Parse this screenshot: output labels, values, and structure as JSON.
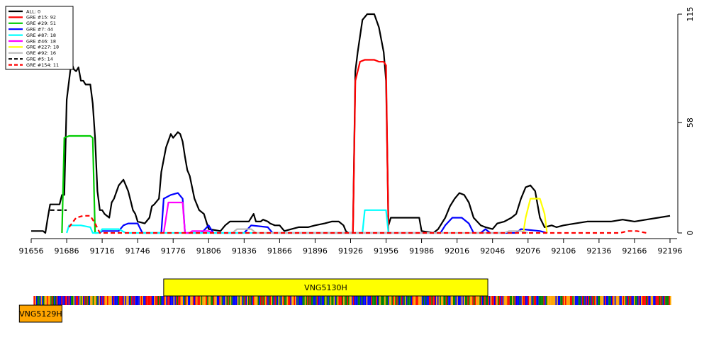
{
  "chart_data": {
    "type": "line",
    "title": "",
    "xlabel": "",
    "ylabel": "",
    "xlim": [
      91656,
      92202
    ],
    "ylim": [
      0,
      115
    ],
    "x_ticks": [
      91656,
      91686,
      91716,
      91746,
      91776,
      91806,
      91836,
      91866,
      91896,
      91926,
      91956,
      91986,
      92016,
      92046,
      92076,
      92106,
      92136,
      92166,
      92196
    ],
    "y_ticks": [
      0,
      58,
      115
    ],
    "y_axis_side": "right",
    "grid": false,
    "legend_position": "top-left",
    "series": [
      {
        "name": "ALL: 0",
        "color": "#000000",
        "dash": "solid",
        "points": [
          [
            91656,
            1
          ],
          [
            91666,
            1
          ],
          [
            91668,
            0
          ],
          [
            91670,
            8
          ],
          [
            91672,
            15
          ],
          [
            91680,
            15
          ],
          [
            91682,
            20
          ],
          [
            91684,
            20
          ],
          [
            91686,
            70
          ],
          [
            91688,
            80
          ],
          [
            91690,
            90
          ],
          [
            91692,
            86
          ],
          [
            91694,
            85
          ],
          [
            91696,
            87
          ],
          [
            91698,
            80
          ],
          [
            91700,
            80
          ],
          [
            91702,
            78
          ],
          [
            91706,
            78
          ],
          [
            91708,
            68
          ],
          [
            91710,
            50
          ],
          [
            91712,
            22
          ],
          [
            91714,
            12
          ],
          [
            91716,
            12
          ],
          [
            91718,
            10
          ],
          [
            91722,
            8
          ],
          [
            91724,
            16
          ],
          [
            91726,
            18
          ],
          [
            91730,
            25
          ],
          [
            91734,
            28
          ],
          [
            91736,
            25
          ],
          [
            91738,
            22
          ],
          [
            91740,
            17
          ],
          [
            91742,
            12
          ],
          [
            91744,
            10
          ],
          [
            91746,
            6
          ],
          [
            91752,
            5
          ],
          [
            91756,
            8
          ],
          [
            91758,
            14
          ],
          [
            91760,
            15
          ],
          [
            91764,
            18
          ],
          [
            91766,
            32
          ],
          [
            91770,
            45
          ],
          [
            91774,
            52
          ],
          [
            91776,
            50
          ],
          [
            91780,
            53
          ],
          [
            91782,
            52
          ],
          [
            91784,
            48
          ],
          [
            91786,
            40
          ],
          [
            91788,
            33
          ],
          [
            91790,
            30
          ],
          [
            91794,
            18
          ],
          [
            91798,
            12
          ],
          [
            91802,
            10
          ],
          [
            91806,
            2
          ],
          [
            91816,
            1
          ],
          [
            91820,
            4
          ],
          [
            91824,
            6
          ],
          [
            91828,
            6
          ],
          [
            91834,
            6
          ],
          [
            91840,
            6
          ],
          [
            91844,
            10
          ],
          [
            91846,
            6
          ],
          [
            91850,
            6
          ],
          [
            91852,
            7
          ],
          [
            91856,
            6
          ],
          [
            91858,
            5
          ],
          [
            91862,
            4
          ],
          [
            91866,
            4
          ],
          [
            91870,
            1
          ],
          [
            91876,
            2
          ],
          [
            91882,
            3
          ],
          [
            91890,
            3
          ],
          [
            91896,
            4
          ],
          [
            91904,
            5
          ],
          [
            91910,
            6
          ],
          [
            91916,
            6
          ],
          [
            91920,
            4
          ],
          [
            91922,
            1
          ],
          [
            91924,
            0
          ],
          [
            91928,
            0
          ],
          [
            91930,
            85
          ],
          [
            91932,
            95
          ],
          [
            91936,
            112
          ],
          [
            91940,
            115
          ],
          [
            91946,
            115
          ],
          [
            91950,
            108
          ],
          [
            91954,
            95
          ],
          [
            91956,
            80
          ],
          [
            91958,
            4
          ],
          [
            91960,
            8
          ],
          [
            91970,
            8
          ],
          [
            91980,
            8
          ],
          [
            91984,
            8
          ],
          [
            91986,
            1
          ],
          [
            91996,
            0
          ],
          [
            92000,
            2
          ],
          [
            92006,
            8
          ],
          [
            92010,
            14
          ],
          [
            92014,
            18
          ],
          [
            92018,
            21
          ],
          [
            92022,
            20
          ],
          [
            92026,
            16
          ],
          [
            92030,
            8
          ],
          [
            92036,
            4
          ],
          [
            92040,
            3
          ],
          [
            92046,
            2
          ],
          [
            92050,
            5
          ],
          [
            92056,
            6
          ],
          [
            92062,
            8
          ],
          [
            92066,
            10
          ],
          [
            92070,
            18
          ],
          [
            92074,
            24
          ],
          [
            92078,
            25
          ],
          [
            92082,
            22
          ],
          [
            92086,
            8
          ],
          [
            92090,
            3
          ],
          [
            92096,
            4
          ],
          [
            92100,
            3
          ],
          [
            92106,
            4
          ],
          [
            92116,
            5
          ],
          [
            92126,
            6
          ],
          [
            92136,
            6
          ],
          [
            92146,
            6
          ],
          [
            92156,
            7
          ],
          [
            92166,
            6
          ],
          [
            92176,
            7
          ],
          [
            92186,
            8
          ],
          [
            92196,
            9
          ]
        ]
      },
      {
        "name": "GRE #15: 92",
        "color": "#ff0000",
        "dash": "solid",
        "points": [
          [
            91926,
            0
          ],
          [
            91928,
            0
          ],
          [
            91930,
            80
          ],
          [
            91934,
            90
          ],
          [
            91938,
            91
          ],
          [
            91946,
            91
          ],
          [
            91950,
            90
          ],
          [
            91954,
            90
          ],
          [
            91956,
            88
          ],
          [
            91958,
            0
          ],
          [
            91960,
            0
          ]
        ]
      },
      {
        "name": "GRE #29: 51",
        "color": "#00cc00",
        "dash": "solid",
        "points": [
          [
            91682,
            0
          ],
          [
            91684,
            50
          ],
          [
            91688,
            51
          ],
          [
            91700,
            51
          ],
          [
            91706,
            51
          ],
          [
            91708,
            50
          ],
          [
            91710,
            0
          ],
          [
            91712,
            0
          ]
        ]
      },
      {
        "name": "GRE #7: 44",
        "color": "#0000ff",
        "dash": "solid",
        "points": [
          [
            91714,
            0
          ],
          [
            91716,
            1
          ],
          [
            91730,
            1
          ],
          [
            91734,
            4
          ],
          [
            91738,
            5
          ],
          [
            91746,
            5
          ],
          [
            91750,
            0
          ],
          [
            91766,
            0
          ],
          [
            91768,
            18
          ],
          [
            91774,
            20
          ],
          [
            91780,
            21
          ],
          [
            91784,
            18
          ],
          [
            91786,
            0
          ],
          [
            91800,
            0
          ],
          [
            91806,
            4
          ],
          [
            91810,
            0
          ],
          [
            91836,
            0
          ],
          [
            91842,
            4
          ],
          [
            91856,
            3
          ],
          [
            91860,
            0
          ],
          [
            92002,
            0
          ],
          [
            92006,
            4
          ],
          [
            92012,
            8
          ],
          [
            92020,
            8
          ],
          [
            92026,
            5
          ],
          [
            92030,
            0
          ],
          [
            92036,
            0
          ],
          [
            92040,
            2
          ],
          [
            92044,
            0
          ],
          [
            92066,
            0
          ],
          [
            92070,
            2
          ],
          [
            92086,
            1
          ],
          [
            92092,
            0
          ]
        ]
      },
      {
        "name": "GRE #87: 18",
        "color": "#00ffff",
        "dash": "solid",
        "points": [
          [
            91686,
            0
          ],
          [
            91688,
            4
          ],
          [
            91698,
            4
          ],
          [
            91706,
            3
          ],
          [
            91708,
            0
          ],
          [
            91714,
            0
          ],
          [
            91716,
            2
          ],
          [
            91730,
            2
          ],
          [
            91736,
            0
          ],
          [
            91936,
            0
          ],
          [
            91938,
            12
          ],
          [
            91952,
            12
          ],
          [
            91956,
            12
          ],
          [
            91958,
            0
          ],
          [
            91960,
            0
          ]
        ]
      },
      {
        "name": "GRE #46: 18",
        "color": "#ff00ff",
        "dash": "solid",
        "points": [
          [
            91768,
            0
          ],
          [
            91772,
            16
          ],
          [
            91780,
            16
          ],
          [
            91784,
            16
          ],
          [
            91786,
            0
          ],
          [
            91790,
            0
          ],
          [
            91792,
            1
          ],
          [
            91806,
            1
          ],
          [
            91810,
            0
          ]
        ]
      },
      {
        "name": "GRE #227: 18",
        "color": "#ffff00",
        "dash": "solid",
        "points": [
          [
            92072,
            0
          ],
          [
            92074,
            8
          ],
          [
            92078,
            18
          ],
          [
            92086,
            18
          ],
          [
            92090,
            10
          ],
          [
            92092,
            0
          ]
        ]
      },
      {
        "name": "GRE #92: 16",
        "color": "#bbbbbb",
        "dash": "solid",
        "points": [
          [
            91826,
            0
          ],
          [
            91830,
            2
          ],
          [
            91842,
            2
          ],
          [
            91846,
            0
          ],
          [
            92056,
            0
          ],
          [
            92060,
            1
          ],
          [
            92070,
            1
          ],
          [
            92076,
            0
          ]
        ]
      },
      {
        "name": "GRE #5: 14",
        "color": "#000000",
        "dash": "dashed",
        "points": [
          [
            91672,
            12
          ],
          [
            91686,
            12
          ]
        ]
      },
      {
        "name": "GRE #154: 11",
        "color": "#ff0000",
        "dash": "dashed",
        "points": [
          [
            91688,
            3
          ],
          [
            91694,
            8
          ],
          [
            91700,
            9
          ],
          [
            91706,
            9
          ],
          [
            91710,
            5
          ],
          [
            91714,
            0
          ],
          [
            91926,
            0
          ],
          [
            91930,
            0
          ],
          [
            92058,
            0
          ],
          [
            92070,
            0
          ],
          [
            92080,
            0
          ],
          [
            92154,
            0
          ],
          [
            92160,
            1
          ],
          [
            92168,
            1
          ],
          [
            92176,
            0
          ]
        ]
      }
    ],
    "genes": [
      {
        "name": "VNG5130H",
        "start": 91768,
        "end": 92042,
        "color": "#ffff00"
      },
      {
        "name": "VNG5129H",
        "start": 91646,
        "end": 91682,
        "color": "#ffa500"
      }
    ],
    "sequence_track": {
      "start": 91658,
      "end": 92198,
      "colors": [
        "#ffa500",
        "#008000",
        "#0000ff",
        "#ff0000"
      ]
    }
  }
}
